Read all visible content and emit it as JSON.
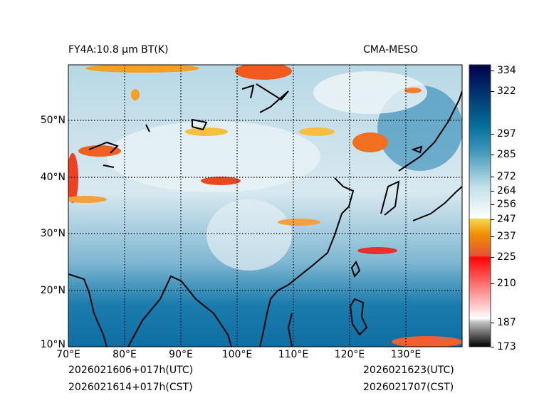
{
  "title_left": "FY4A:10.8 µm BT(K)",
  "title_right": "CMA-MESO",
  "footer": {
    "init_utc": "2026021606+017h(UTC)",
    "init_cst": "2026021614+017h(CST)",
    "valid_utc": "2026021623(UTC)",
    "valid_cst": "2026021707(CST)"
  },
  "map": {
    "lon_range": [
      70,
      140
    ],
    "lat_range": [
      10,
      60
    ],
    "x_ticks": [
      "70°E",
      "80°E",
      "90°E",
      "100°E",
      "110°E",
      "120°E",
      "130°E"
    ],
    "y_ticks": [
      "10°N",
      "20°N",
      "30°N",
      "40°N",
      "50°N"
    ]
  },
  "colorbar": {
    "ticks": [
      "334",
      "322",
      "297",
      "285",
      "272",
      "264",
      "256",
      "247",
      "237",
      "225",
      "210",
      "187",
      "173"
    ],
    "colors": {
      "cold_black": "#000000",
      "gray": "#c8c8c8",
      "red": "#ff0000",
      "orange": "#f08c00",
      "yellow": "#f5dc50",
      "white": "#ffffff",
      "light_blue": "#a8d0e0",
      "blue": "#1478a8",
      "navy": "#00004a"
    }
  }
}
